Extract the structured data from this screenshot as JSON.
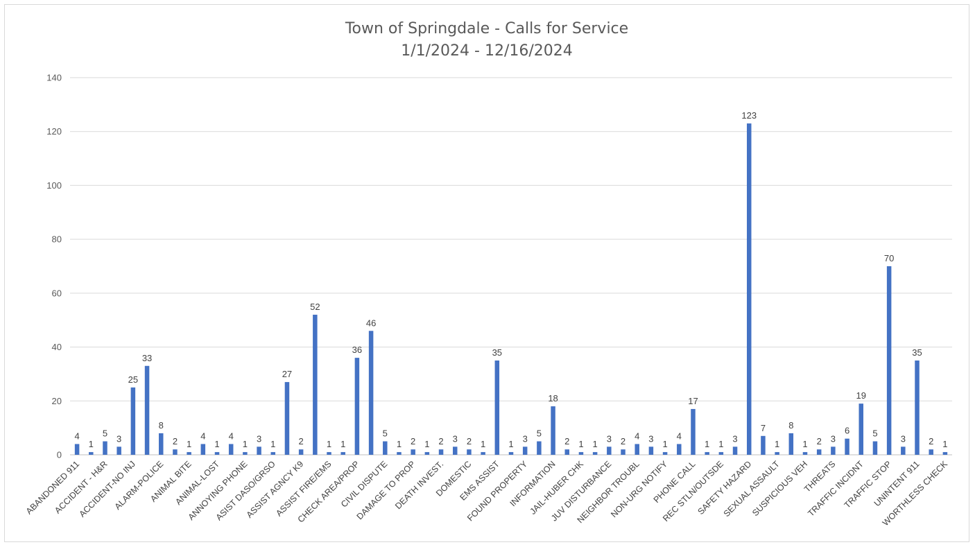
{
  "chart_data": {
    "type": "bar",
    "title": "Town of Springdale - Calls for Service",
    "subtitle": "1/1/2024 - 12/16/2024",
    "xlabel": "",
    "ylabel": "",
    "ylim": [
      0,
      140
    ],
    "yticks": [
      0,
      20,
      40,
      60,
      80,
      100,
      120,
      140
    ],
    "grid": true,
    "legend": "none",
    "bar_color": "#4472c4",
    "categories": [
      "ABANDONED 911",
      "",
      "ACCIDENT - H&R",
      "",
      "ACCIDENT-NO INJ",
      "",
      "ALARM-POLICE",
      "",
      "ANIMAL BITE",
      "",
      "ANIMAL-LOST",
      "",
      "ANNOYING PHONE",
      "",
      "ASIST DASO/GRSO",
      "",
      "ASSIST AGNCY K9",
      "",
      "ASSIST FIRE/EMS",
      "",
      "CHECK AREA/PROP",
      "",
      "CIVIL DISPUTE",
      "",
      "DAMAGE TO PROP",
      "",
      "DEATH INVEST.",
      "",
      "DOMESTIC",
      "",
      "EMS ASSIST",
      "",
      "FOUND PROPERTY",
      "",
      "INFORMATION",
      "",
      "JAIL-HUBER CHK",
      "",
      "JUV DISTURBANCE",
      "",
      "NEIGHBOR TROUBL",
      "",
      "NON-URG NOTIFY",
      "",
      "PHONE CALL",
      "",
      "REC STLN/OUTSDE",
      "",
      "SAFETY HAZARD",
      "",
      "SEXUAL ASSAULT",
      "",
      "SUSPICIOUS VEH",
      "",
      "THREATS",
      "",
      "TRAFFIC INCIDNT",
      "",
      "TRAFFIC STOP",
      "",
      "UNINTENT 911",
      "",
      "WORTHLESS CHECK"
    ],
    "values": [
      4,
      1,
      5,
      3,
      25,
      33,
      8,
      2,
      1,
      4,
      1,
      4,
      1,
      3,
      1,
      27,
      2,
      52,
      1,
      1,
      36,
      46,
      5,
      1,
      2,
      1,
      2,
      3,
      2,
      1,
      35,
      1,
      3,
      5,
      18,
      2,
      1,
      1,
      3,
      2,
      4,
      3,
      1,
      4,
      17,
      1,
      1,
      3,
      123,
      7,
      1,
      8,
      1,
      2,
      3,
      6,
      19,
      5,
      70,
      3,
      35,
      2,
      1
    ]
  }
}
